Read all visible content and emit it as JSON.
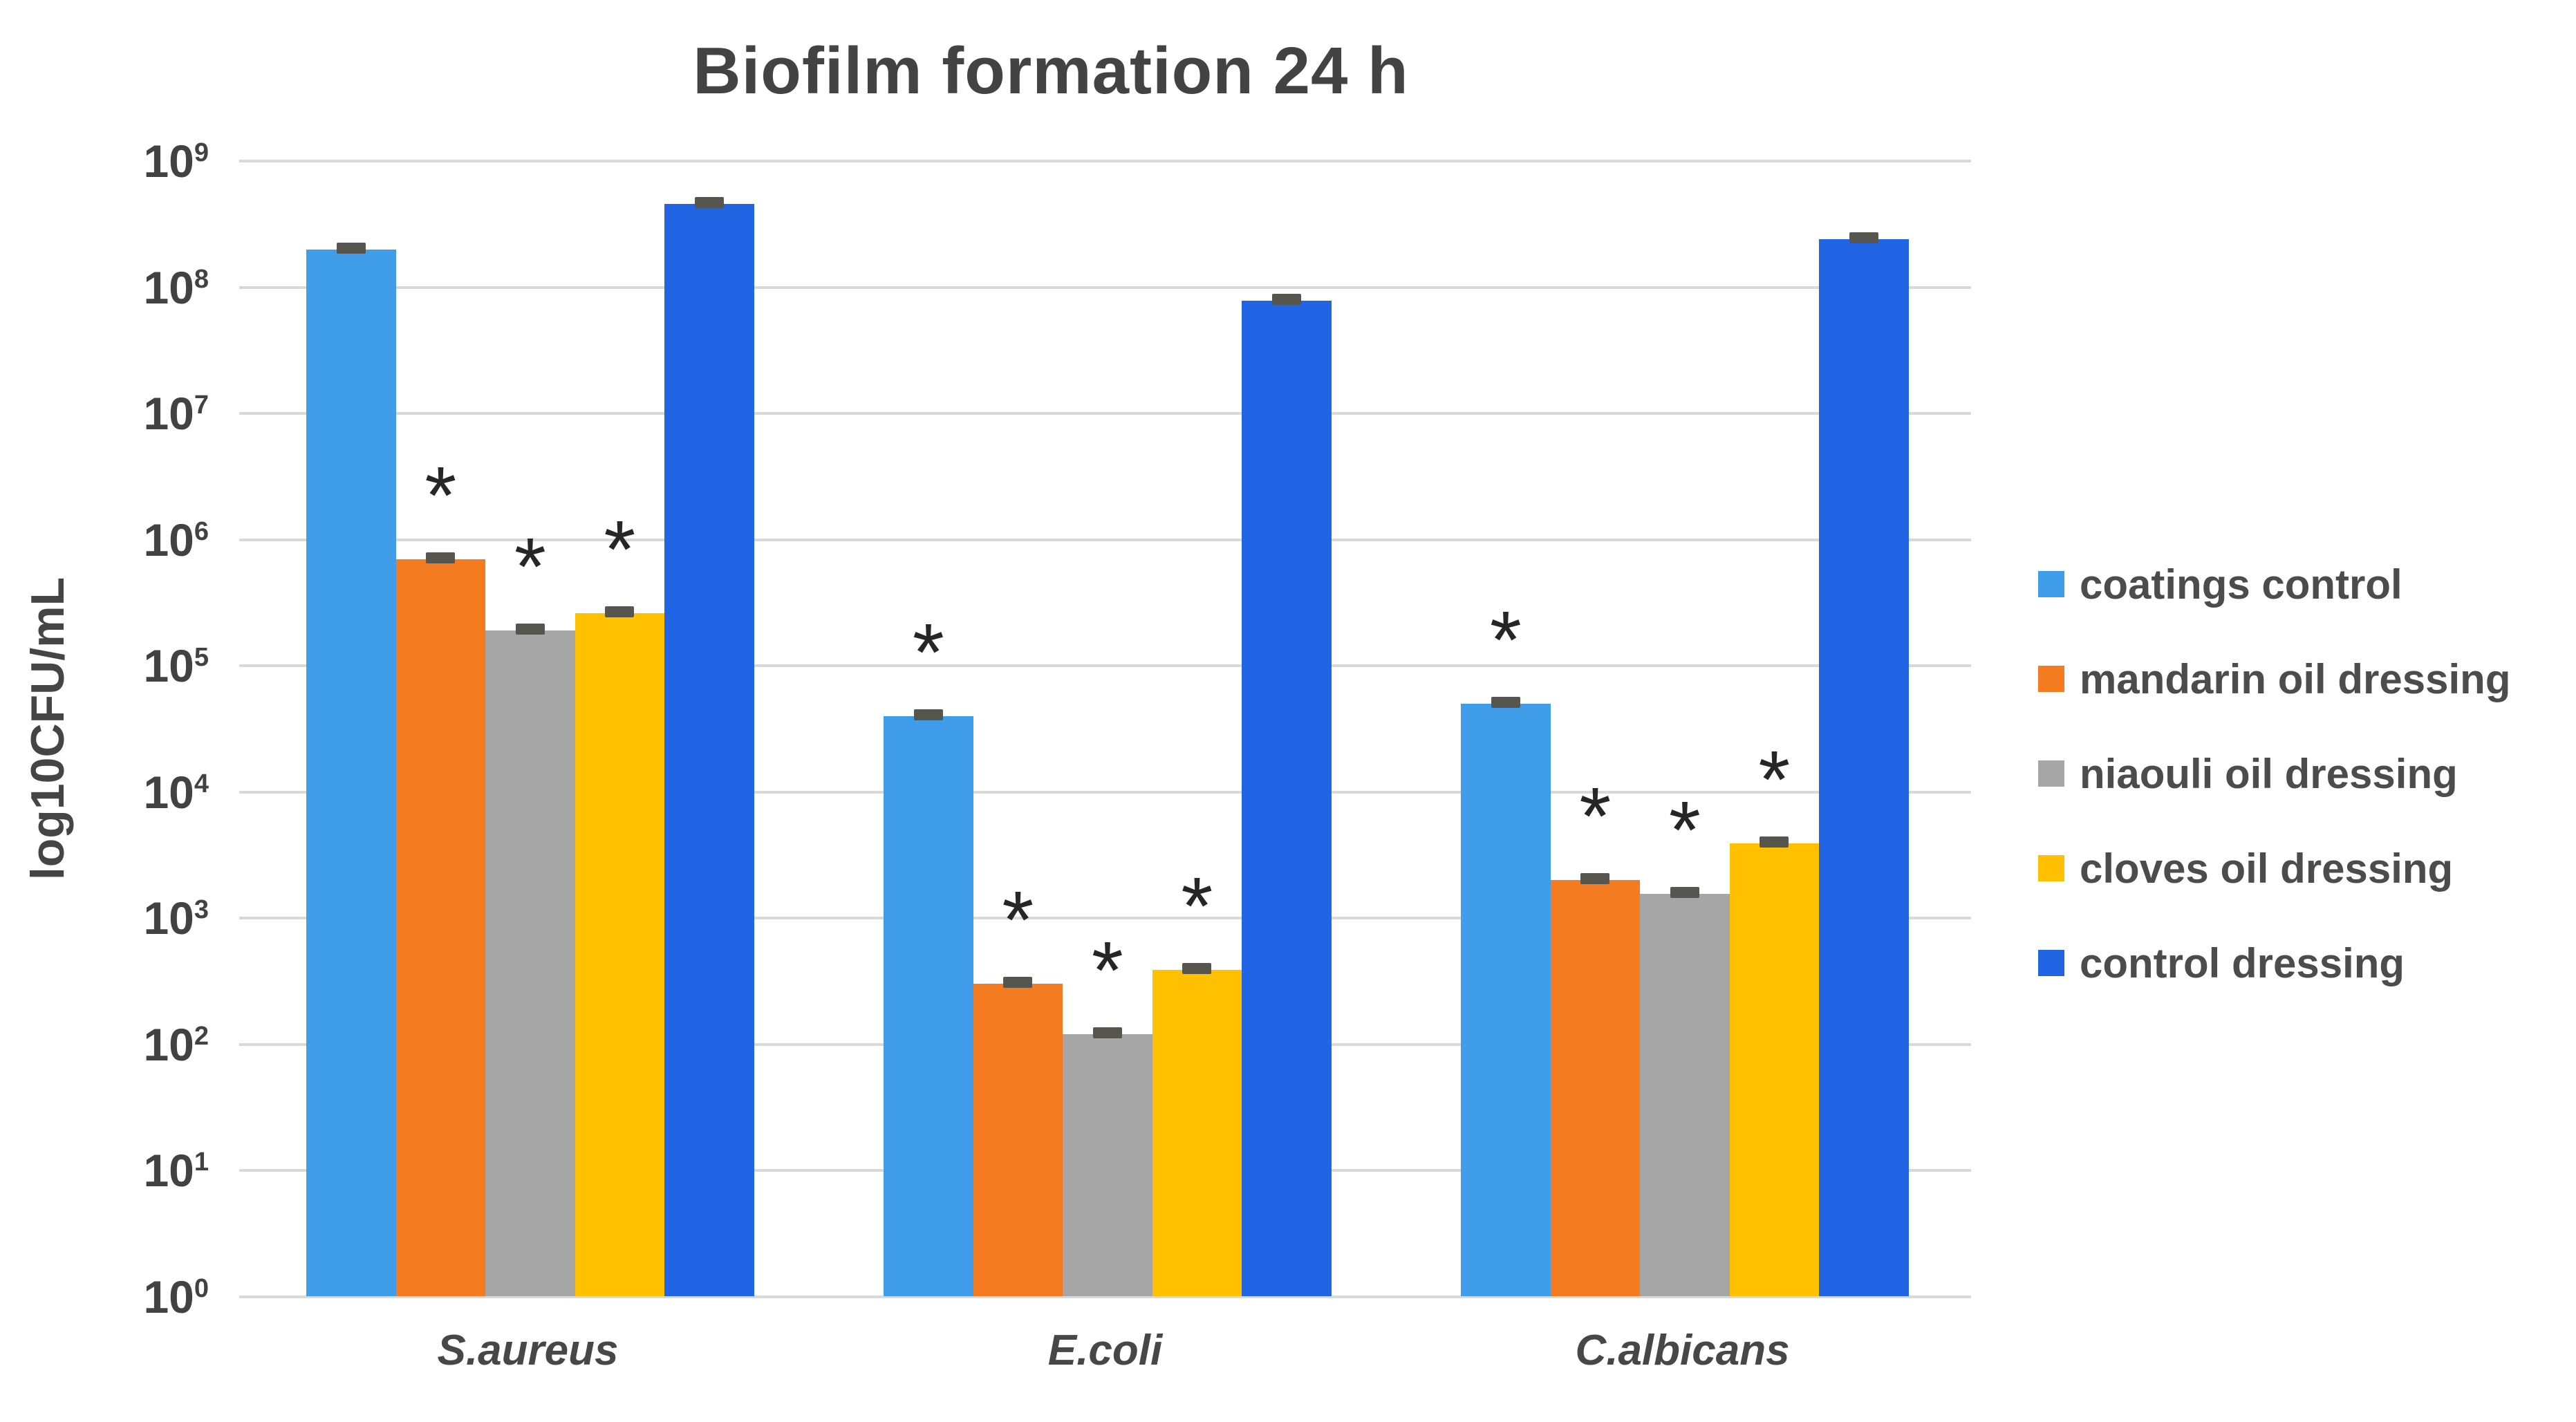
{
  "title": "Biofilm formation 24 h",
  "y_axis": {
    "label": "log10CFU/mL",
    "tick_base": "10",
    "tick_exponents": [
      9,
      8,
      7,
      6,
      5,
      4,
      3,
      2,
      1,
      0
    ]
  },
  "chart_data": {
    "type": "bar",
    "scale": "log10",
    "title": "Biofilm formation 24 h",
    "ylabel": "log10CFU/mL",
    "ylim": [
      1,
      1000000000
    ],
    "grid": "horizontal",
    "legend_position": "right",
    "annotation_symbol": "*",
    "annotation_meaning": "significant vs control",
    "error_caps": true,
    "categories": [
      "S.aureus",
      "E.coli",
      "C.albicans"
    ],
    "series": [
      {
        "name": "coatings control",
        "color": "#3f9de9",
        "values": [
          200000000.0,
          40000.0,
          50000.0
        ],
        "significant": [
          false,
          true,
          true
        ]
      },
      {
        "name": "mandarin oil dressing",
        "color": "#f47b20",
        "values": [
          700000.0,
          300.0,
          2000.0
        ],
        "significant": [
          true,
          true,
          true
        ]
      },
      {
        "name": "niaouli oil dressing",
        "color": "#a6a6a6",
        "values": [
          190000.0,
          120.0,
          1550.0
        ],
        "significant": [
          true,
          true,
          true
        ]
      },
      {
        "name": "cloves oil dressing",
        "color": "#ffc000",
        "values": [
          260000.0,
          390.0,
          3900.0
        ],
        "significant": [
          true,
          true,
          true
        ]
      },
      {
        "name": "control dressing",
        "color": "#2164e4",
        "values": [
          460000000.0,
          78000000.0,
          240000000.0
        ],
        "significant": [
          false,
          false,
          false
        ]
      }
    ]
  },
  "legend": {
    "items": [
      {
        "label": "coatings control",
        "color": "#3f9de9"
      },
      {
        "label": "mandarin oil dressing",
        "color": "#f47b20"
      },
      {
        "label": "niaouli oil dressing",
        "color": "#a6a6a6"
      },
      {
        "label": "cloves oil dressing",
        "color": "#ffc000"
      },
      {
        "label": "control dressing",
        "color": "#2164e4"
      }
    ]
  }
}
